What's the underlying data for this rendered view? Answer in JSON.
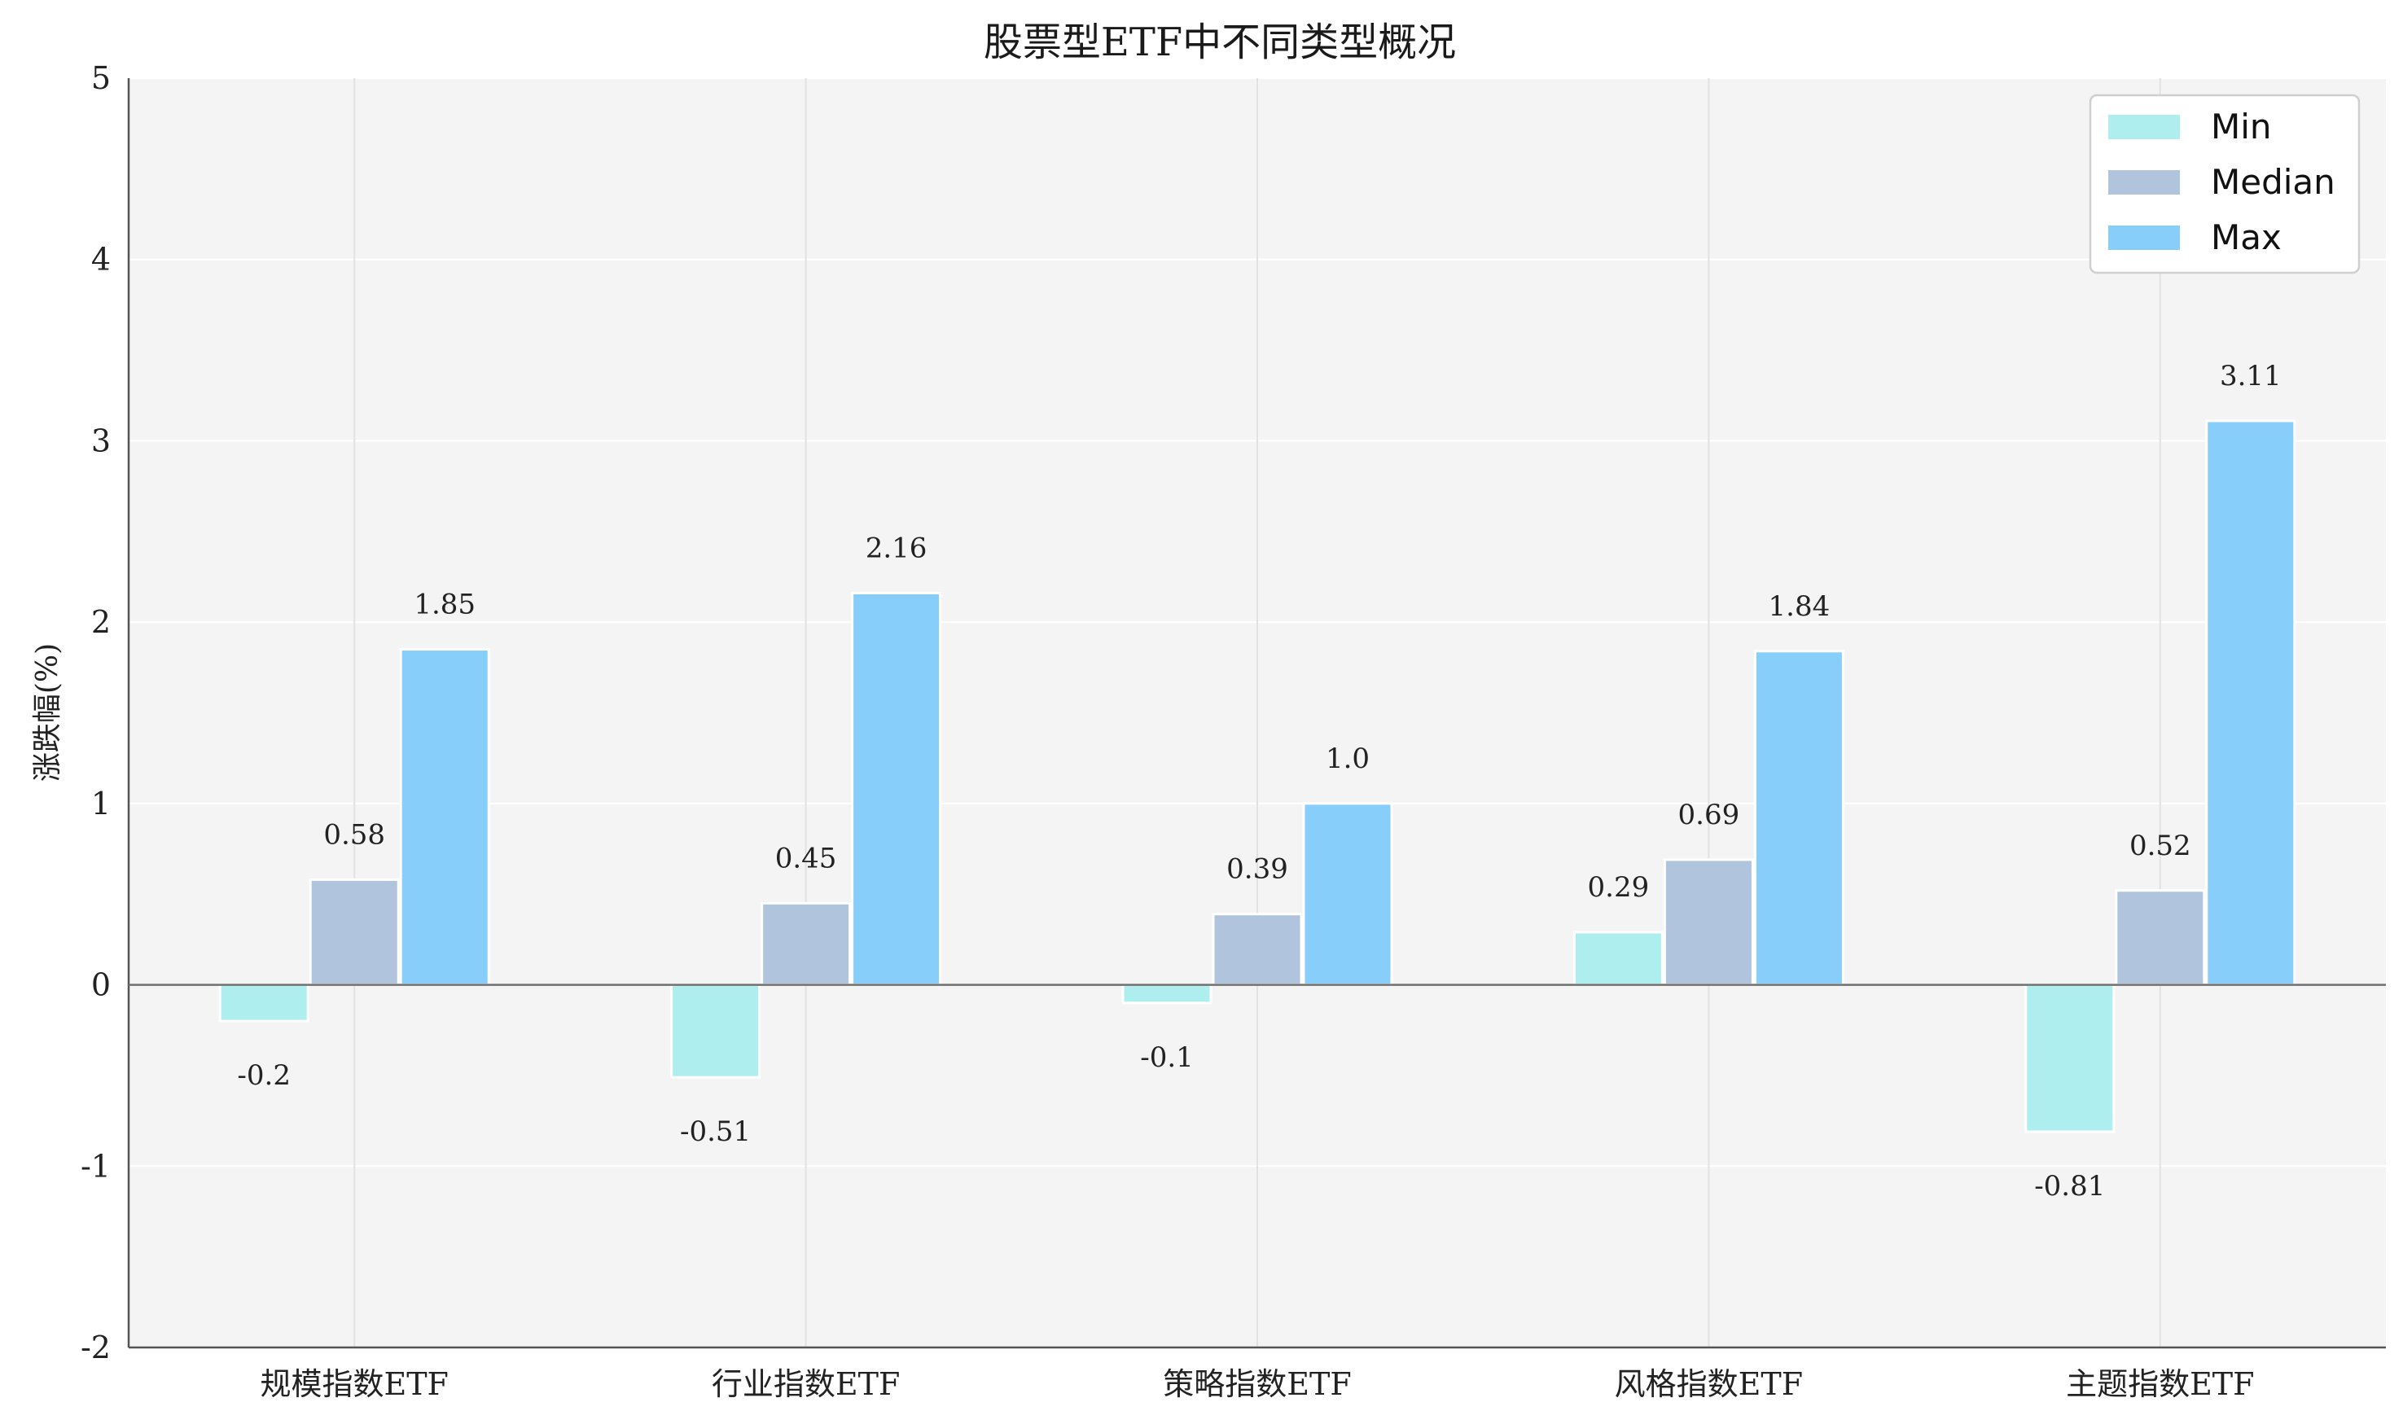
{
  "chart_data": {
    "type": "bar",
    "title": "股票型ETF中不同类型概况",
    "xlabel": "",
    "ylabel": "涨跌幅(%)",
    "ylim": [
      -2,
      5
    ],
    "yticks": [
      "-2",
      "-1",
      "0",
      "1",
      "2",
      "3",
      "4",
      "5"
    ],
    "categories": [
      "规模指数ETF",
      "行业指数ETF",
      "策略指数ETF",
      "风格指数ETF",
      "主题指数ETF"
    ],
    "series": [
      {
        "name": "Min",
        "color": "#afeeee",
        "values": [
          -0.2,
          -0.51,
          -0.1,
          0.29,
          -0.81
        ],
        "labels": [
          "-0.2",
          "-0.51",
          "-0.1",
          "0.29",
          "-0.81"
        ]
      },
      {
        "name": "Median",
        "color": "#b0c4de",
        "values": [
          0.58,
          0.45,
          0.39,
          0.69,
          0.52
        ],
        "labels": [
          "0.58",
          "0.45",
          "0.39",
          "0.69",
          "0.52"
        ]
      },
      {
        "name": "Max",
        "color": "#87cefa",
        "values": [
          1.85,
          2.16,
          1.0,
          1.84,
          3.11
        ],
        "labels": [
          "1.85",
          "2.16",
          "1.0",
          "1.84",
          "3.11"
        ]
      }
    ],
    "grid": true,
    "legend": "top-right"
  }
}
